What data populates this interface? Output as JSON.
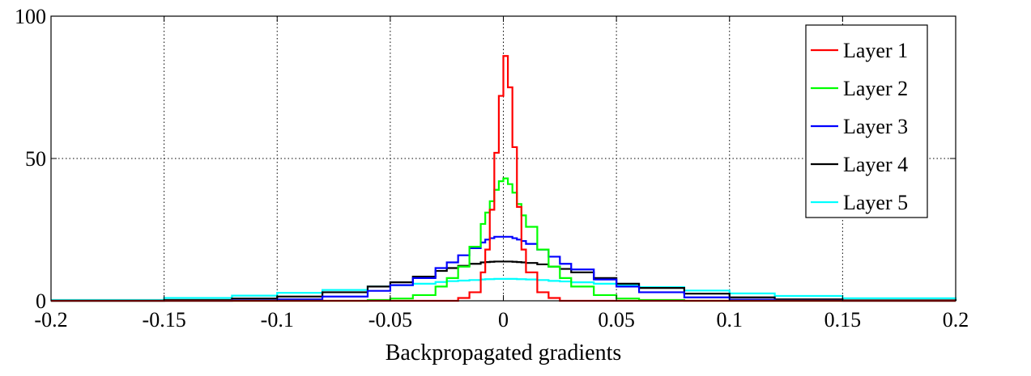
{
  "chart_data": {
    "type": "line",
    "title": "",
    "xlabel": "Backpropagated gradients",
    "ylabel": "",
    "xlim": [
      -0.2,
      0.2
    ],
    "ylim": [
      0,
      100
    ],
    "grid": true,
    "grid_style": "dotted",
    "legend_position": "top-right",
    "x_ticks": [
      -0.2,
      -0.15,
      -0.1,
      -0.05,
      0,
      0.05,
      0.1,
      0.15,
      0.2
    ],
    "x_tick_labels": [
      "-0.2",
      "-0.15",
      "-0.1",
      "-0.05",
      "0",
      "0.05",
      "0.1",
      "0.15",
      "0.2"
    ],
    "y_ticks": [
      0,
      50,
      100
    ],
    "y_tick_labels": [
      "0",
      "50",
      "100"
    ],
    "x": [
      -0.2,
      -0.15,
      -0.12,
      -0.1,
      -0.08,
      -0.06,
      -0.05,
      -0.04,
      -0.03,
      -0.025,
      -0.02,
      -0.015,
      -0.01,
      -0.008,
      -0.006,
      -0.004,
      -0.002,
      0,
      0.002,
      0.004,
      0.006,
      0.008,
      0.01,
      0.015,
      0.02,
      0.025,
      0.03,
      0.04,
      0.05,
      0.06,
      0.08,
      0.1,
      0.12,
      0.15,
      0.2
    ],
    "series": [
      {
        "name": "Layer 1",
        "color": "#ff0000",
        "values": [
          0,
          0,
          0,
          0,
          0,
          0,
          0,
          0,
          0,
          0,
          1,
          3,
          10,
          18,
          32,
          52,
          72,
          86,
          75,
          54,
          33,
          18,
          10,
          3,
          1,
          0,
          0,
          0,
          0,
          0,
          0,
          0,
          0,
          0,
          0
        ]
      },
      {
        "name": "Layer 2",
        "color": "#00ff00",
        "values": [
          0,
          0,
          0,
          0,
          0,
          0.3,
          0.8,
          2,
          5,
          8,
          12,
          19,
          27,
          31,
          35,
          39,
          42,
          43,
          41,
          38,
          34,
          30,
          26,
          18,
          12,
          8,
          5,
          2,
          0.8,
          0.3,
          0,
          0,
          0,
          0,
          0
        ]
      },
      {
        "name": "Layer 3",
        "color": "#0000ff",
        "values": [
          0,
          0,
          0.2,
          0.5,
          1.5,
          3.5,
          5.5,
          8,
          11.5,
          13.5,
          16,
          18.5,
          20.5,
          21.5,
          22,
          22.5,
          22.5,
          22.5,
          22.5,
          22,
          21.5,
          21,
          20,
          18,
          15.5,
          13,
          11,
          7.5,
          5,
          3,
          1.2,
          0.4,
          0.1,
          0,
          0
        ]
      },
      {
        "name": "Layer 4",
        "color": "#000000",
        "values": [
          0,
          0.3,
          0.8,
          1.5,
          3,
          5,
          6.5,
          8.5,
          10.5,
          11.5,
          12.3,
          13,
          13.5,
          13.6,
          13.7,
          13.8,
          13.8,
          13.8,
          13.8,
          13.7,
          13.6,
          13.5,
          13.3,
          12.8,
          12,
          11.2,
          10,
          8,
          6,
          4.5,
          2.5,
          1.2,
          0.5,
          0.2,
          0
        ]
      },
      {
        "name": "Layer 5",
        "color": "#00ffff",
        "values": [
          0.3,
          1,
          1.8,
          2.8,
          3.8,
          5,
          5.5,
          6,
          6.6,
          6.9,
          7.1,
          7.3,
          7.5,
          7.6,
          7.6,
          7.7,
          7.7,
          7.7,
          7.7,
          7.7,
          7.6,
          7.6,
          7.5,
          7.3,
          7,
          6.8,
          6.5,
          6,
          5.4,
          4.8,
          3.6,
          2.6,
          1.7,
          0.9,
          0.3
        ]
      }
    ]
  }
}
